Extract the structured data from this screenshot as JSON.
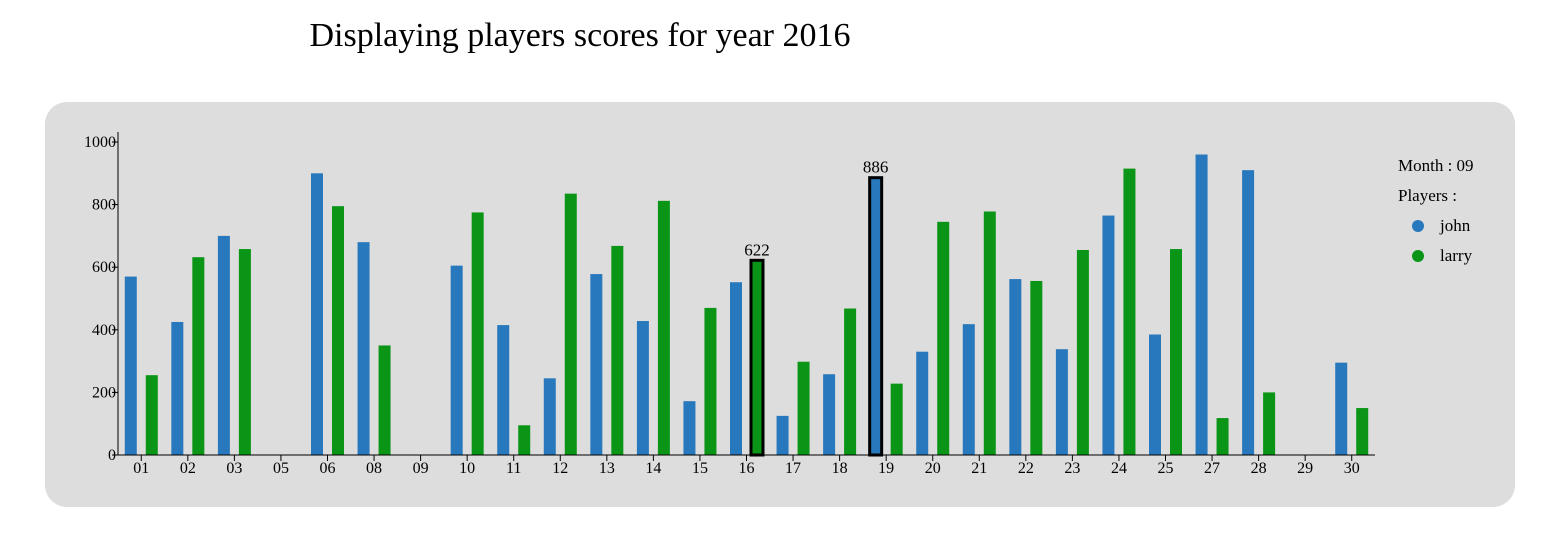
{
  "title": "Displaying players scores for year 2016",
  "legend": {
    "month_label": "Month : 09",
    "players_label": "Players :",
    "items": [
      {
        "name": "john",
        "color": "#2878bd"
      },
      {
        "name": "larry",
        "color": "#0a9516"
      }
    ]
  },
  "chart_data": {
    "type": "bar",
    "title": "Displaying players scores for year 2016",
    "xlabel": "",
    "ylabel": "",
    "ylim": [
      0,
      1000
    ],
    "yticks": [
      0,
      200,
      400,
      600,
      800,
      1000
    ],
    "grid": false,
    "legend_position": "right",
    "categories": [
      "01",
      "02",
      "03",
      "05",
      "06",
      "08",
      "09",
      "10",
      "11",
      "12",
      "13",
      "14",
      "15",
      "16",
      "17",
      "18",
      "19",
      "20",
      "21",
      "22",
      "23",
      "24",
      "25",
      "27",
      "28",
      "29",
      "30"
    ],
    "series": [
      {
        "name": "john",
        "color": "#2878bd",
        "values": [
          570,
          425,
          700,
          null,
          900,
          680,
          null,
          605,
          415,
          245,
          578,
          428,
          172,
          552,
          125,
          258,
          886,
          330,
          418,
          562,
          338,
          765,
          385,
          960,
          910,
          null,
          295
        ]
      },
      {
        "name": "larry",
        "color": "#0a9516",
        "values": [
          255,
          632,
          658,
          null,
          795,
          350,
          null,
          775,
          95,
          835,
          668,
          812,
          470,
          622,
          298,
          468,
          228,
          745,
          778,
          556,
          655,
          915,
          658,
          118,
          200,
          null,
          150
        ]
      }
    ],
    "highlighted": [
      {
        "category": "16",
        "series": "larry",
        "label": "622"
      },
      {
        "category": "19",
        "series": "john",
        "label": "886"
      }
    ]
  }
}
